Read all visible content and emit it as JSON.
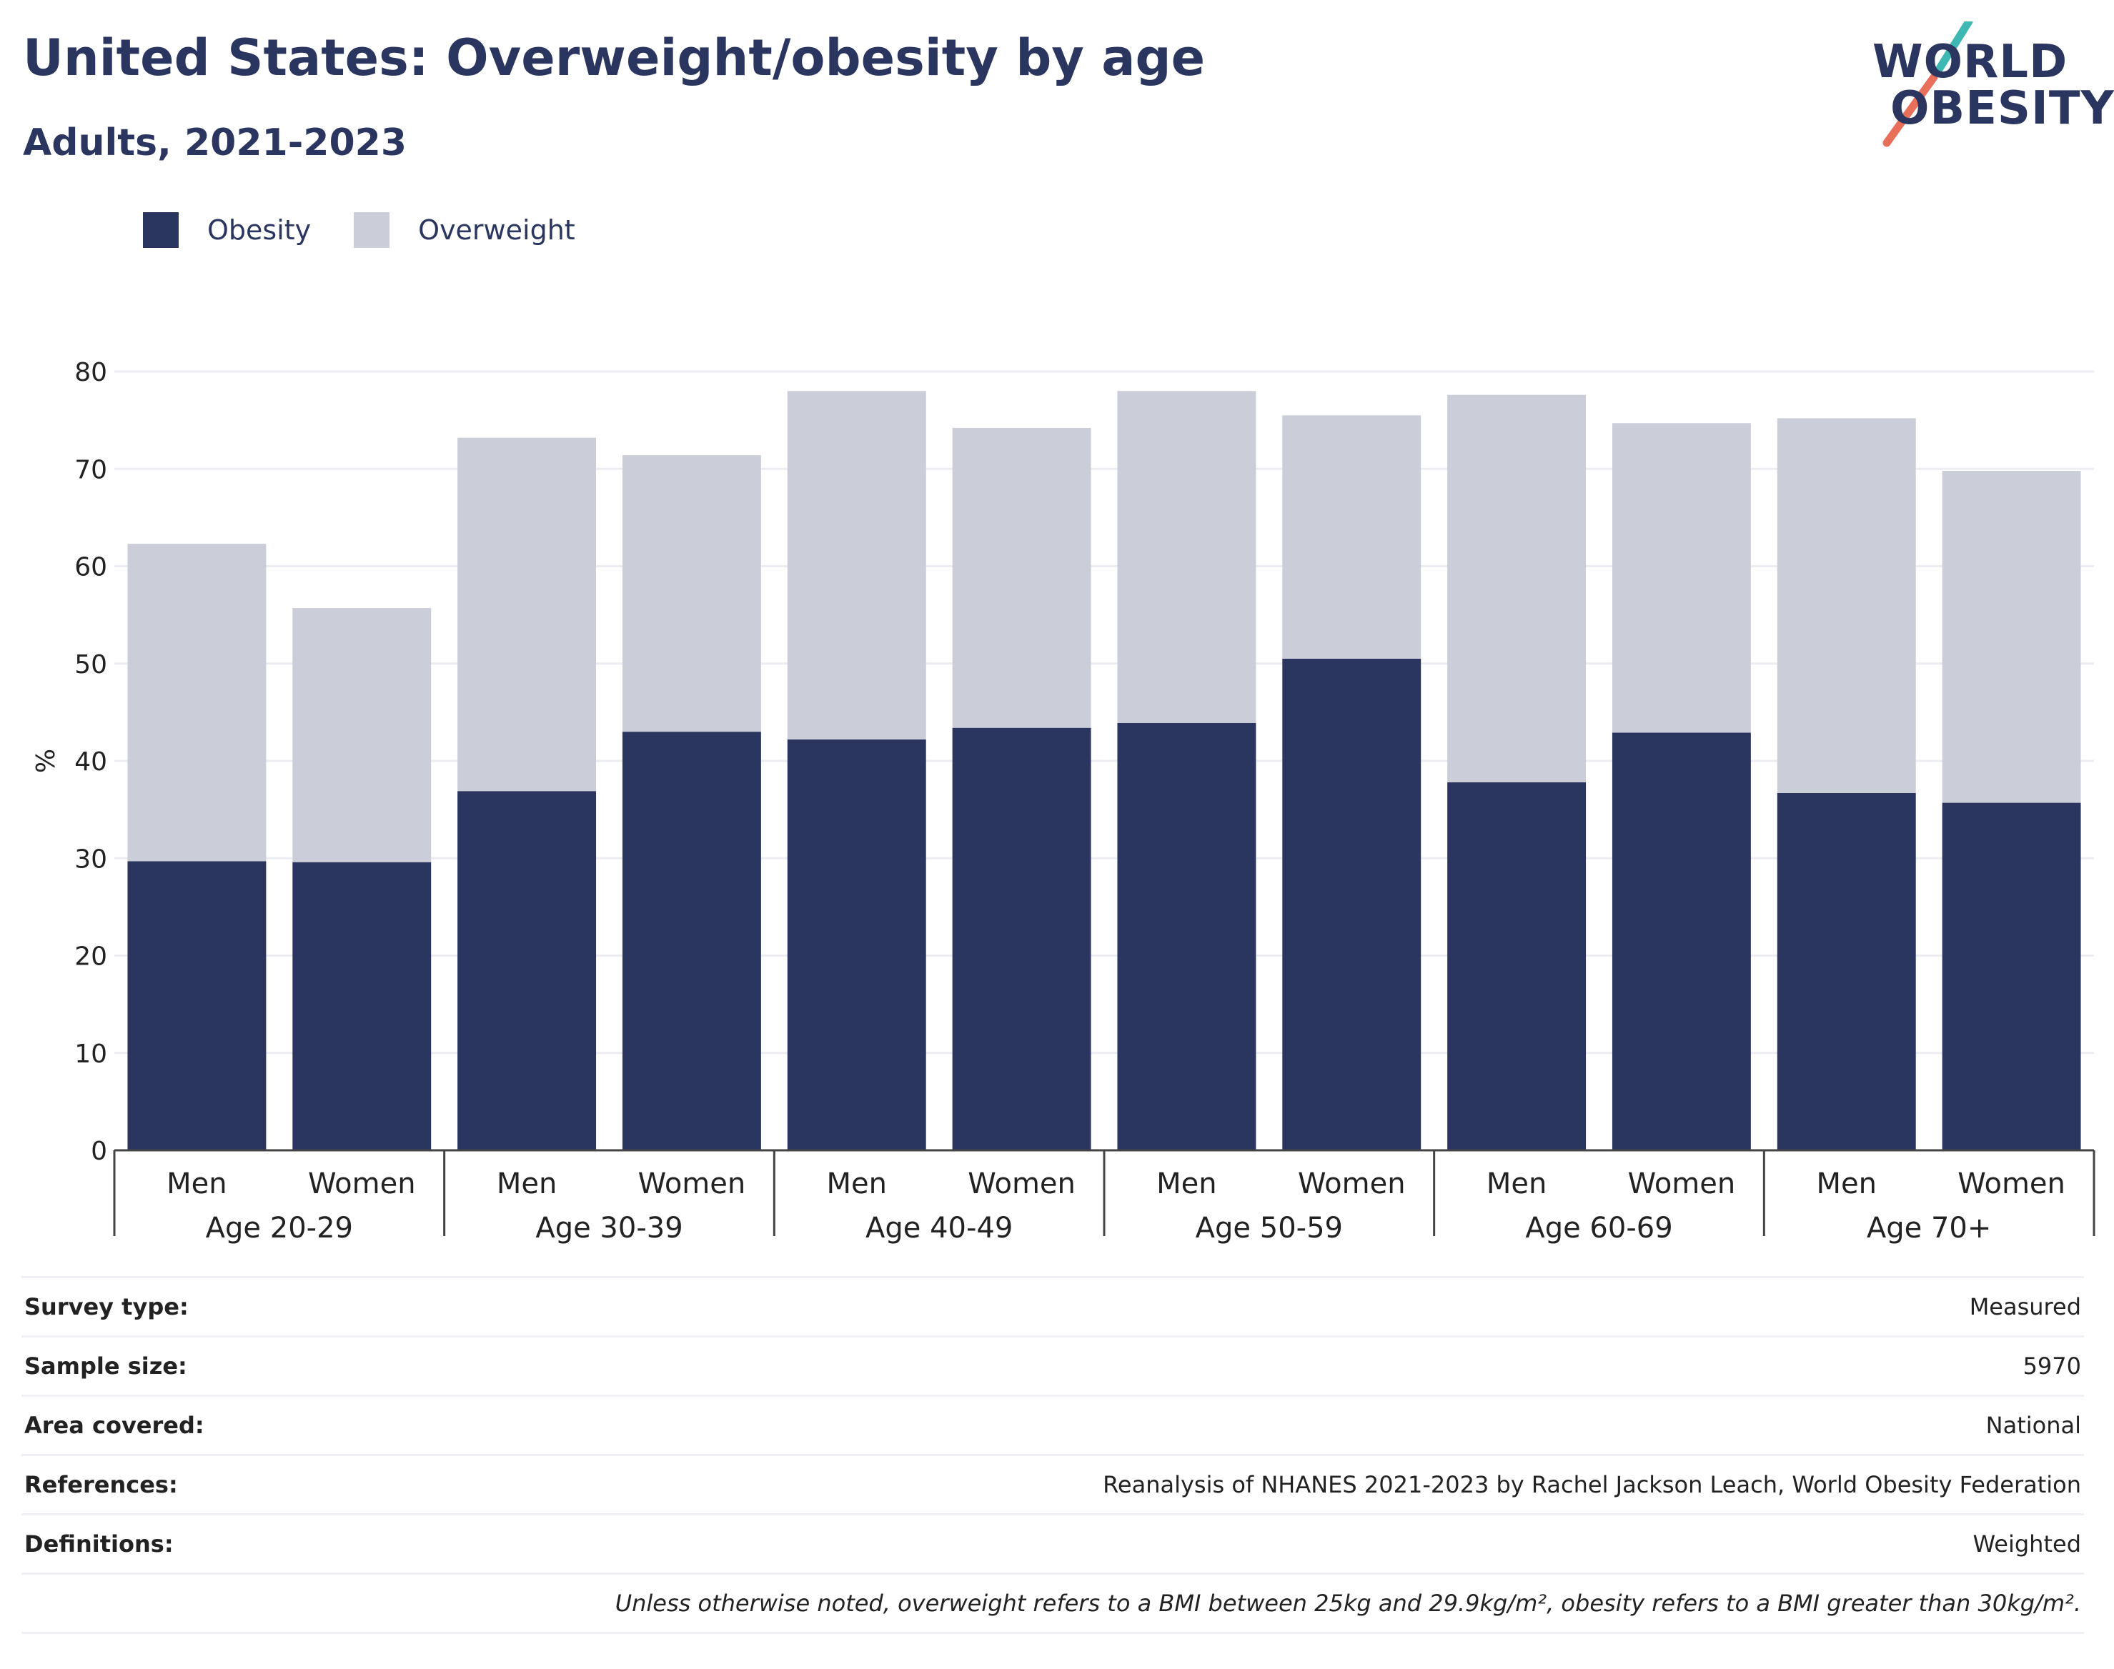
{
  "title": "United States: Overweight/obesity by age",
  "subtitle": "Adults, 2021-2023",
  "logo": {
    "line1": "WORLD",
    "line2": "OBESITY",
    "slash_colors": [
      "#3fb8b4",
      "#e8705a"
    ]
  },
  "colors": {
    "obesity": "#2a365f",
    "overweight": "#cbcdd9",
    "text": "#2a365f",
    "grid": "#ebedf2"
  },
  "chart_data": {
    "type": "bar",
    "stacked": true,
    "title": "",
    "ylabel": "%",
    "xlabel": "",
    "ylim": [
      0,
      80
    ],
    "yticks": [
      0,
      10,
      20,
      30,
      40,
      50,
      60,
      70,
      80
    ],
    "grid": true,
    "legend_placement": "top-left",
    "groups": [
      "Age 20-29",
      "Age 30-39",
      "Age 40-49",
      "Age 50-59",
      "Age 60-69",
      "Age 70+"
    ],
    "categories": [
      "Men",
      "Women",
      "Men",
      "Women",
      "Men",
      "Women",
      "Men",
      "Women",
      "Men",
      "Women",
      "Men",
      "Women"
    ],
    "series": [
      {
        "name": "Obesity",
        "color": "#2a365f",
        "values": [
          29.7,
          29.6,
          36.9,
          43.0,
          42.2,
          43.4,
          43.9,
          50.5,
          37.8,
          42.9,
          36.7,
          35.7
        ]
      },
      {
        "name": "Overweight",
        "color": "#cbcdd9",
        "values": [
          32.6,
          26.1,
          36.3,
          28.4,
          35.8,
          30.8,
          34.1,
          25.0,
          39.8,
          31.8,
          38.5,
          34.1
        ]
      }
    ]
  },
  "info": [
    {
      "key": "Survey type:",
      "value": "Measured"
    },
    {
      "key": "Sample size:",
      "value": "5970"
    },
    {
      "key": "Area covered:",
      "value": "National"
    },
    {
      "key": "References:",
      "value": "Reanalysis of NHANES 2021-2023 by Rachel Jackson Leach, World Obesity Federation"
    },
    {
      "key": "Definitions:",
      "value": "Weighted"
    }
  ],
  "note": "Unless otherwise noted, overweight refers to a BMI between 25kg and 29.9kg/m², obesity refers to a BMI greater than 30kg/m²."
}
